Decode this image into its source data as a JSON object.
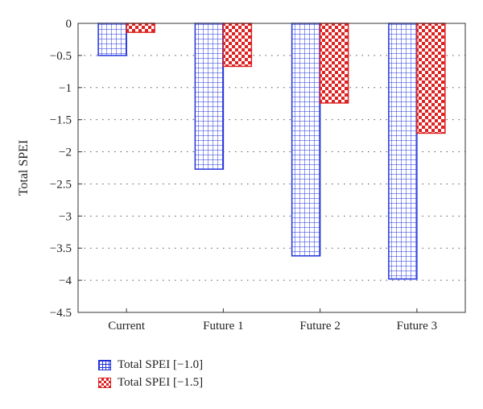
{
  "chart_data": {
    "type": "bar",
    "categories": [
      "Current",
      "Future 1",
      "Future 2",
      "Future 3"
    ],
    "series": [
      {
        "name": "Total SPEI [−1.0]",
        "values": [
          -0.5,
          -2.27,
          -3.62,
          -3.98
        ],
        "color": "#2233dd",
        "pattern": "grid"
      },
      {
        "name": "Total SPEI [−1.5]",
        "values": [
          -0.14,
          -0.67,
          -1.24,
          -1.71
        ],
        "color": "#dd2222",
        "pattern": "checker"
      }
    ],
    "ylabel": "Total SPEI",
    "xlabel": "",
    "ylim": [
      -4.5,
      0
    ],
    "yticks": [
      0,
      -0.5,
      -1,
      -1.5,
      -2,
      -2.5,
      -3,
      -3.5,
      -4,
      -4.5
    ],
    "ytick_labels": [
      "0",
      "−0.5",
      "−1",
      "−1.5",
      "−2",
      "−2.5",
      "−3",
      "−3.5",
      "−4",
      "−4.5"
    ],
    "grid": "horizontal-dotted",
    "legend_position": "bottom-left"
  }
}
